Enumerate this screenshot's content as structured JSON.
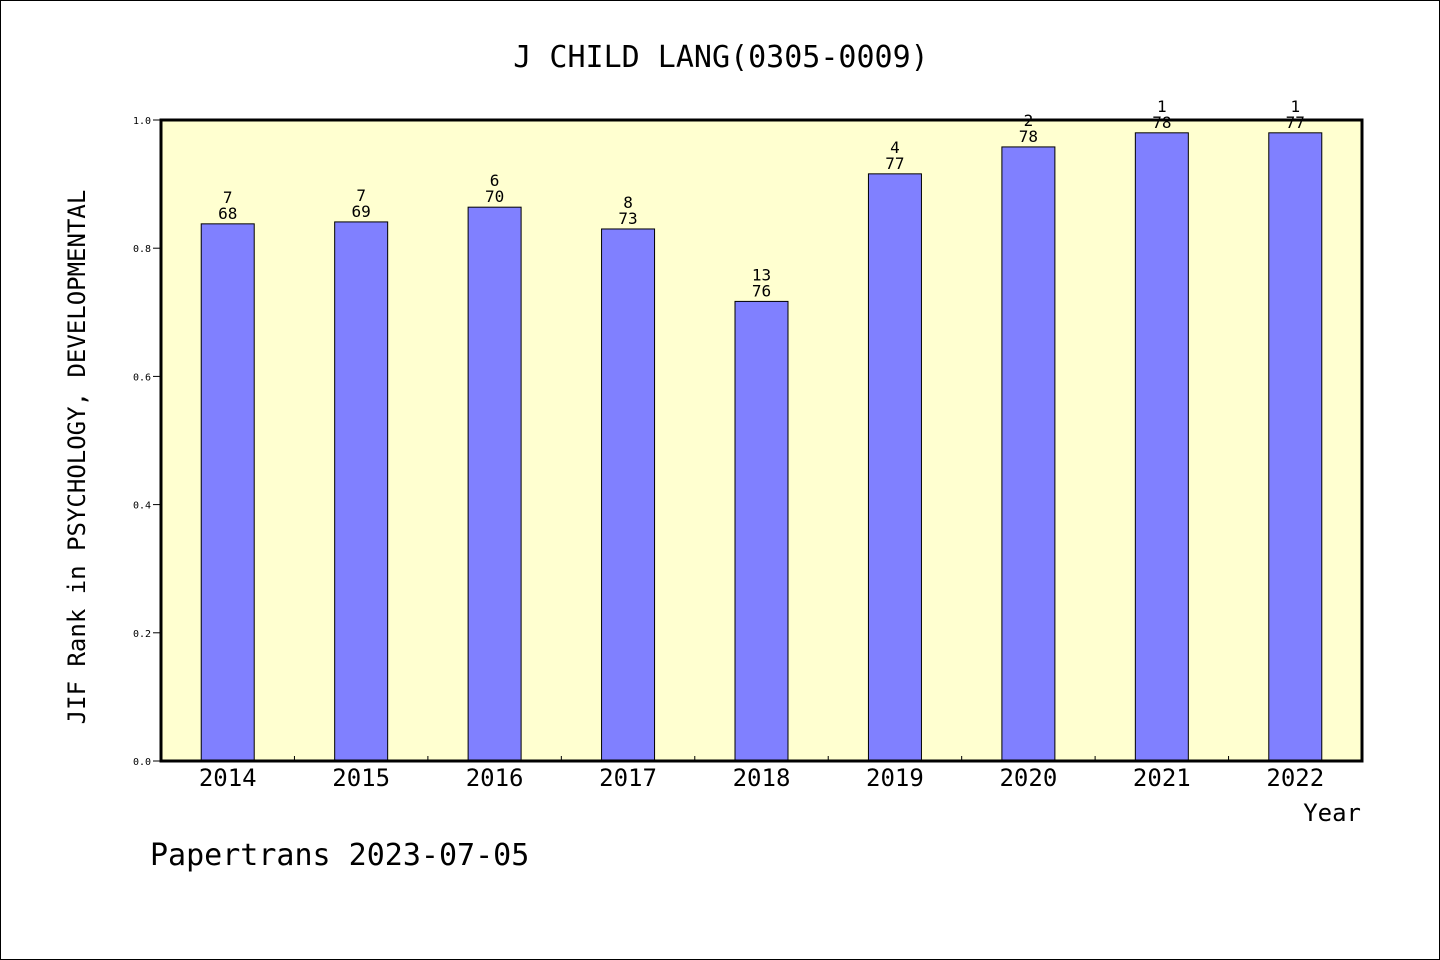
{
  "footer": {
    "credit": "Papertrans 2023-07-05"
  },
  "chart_data": {
    "type": "bar",
    "title": "J CHILD LANG(0305-0009)",
    "xlabel": "Year",
    "ylabel": "JIF Rank in PSYCHOLOGY, DEVELOPMENTAL",
    "categories": [
      "2014",
      "2015",
      "2016",
      "2017",
      "2018",
      "2019",
      "2020",
      "2021",
      "2022"
    ],
    "values": [
      0.838,
      0.841,
      0.864,
      0.83,
      0.717,
      0.916,
      0.958,
      0.98,
      0.98
    ],
    "bar_labels": [
      {
        "rank": "7",
        "total": "68"
      },
      {
        "rank": "7",
        "total": "69"
      },
      {
        "rank": "6",
        "total": "70"
      },
      {
        "rank": "8",
        "total": "73"
      },
      {
        "rank": "13",
        "total": "76"
      },
      {
        "rank": "4",
        "total": "77"
      },
      {
        "rank": "2",
        "total": "78"
      },
      {
        "rank": "1",
        "total": "78"
      },
      {
        "rank": "1",
        "total": "77"
      }
    ],
    "ylim": [
      0,
      1
    ],
    "yticks": [
      "0.0",
      "0.2",
      "0.4",
      "0.6",
      "0.8",
      "1.0"
    ],
    "grid": false,
    "colors": {
      "plot_background": "#ffffd0",
      "bar_fill": "#8080ff",
      "bar_stroke": "#000000"
    }
  }
}
